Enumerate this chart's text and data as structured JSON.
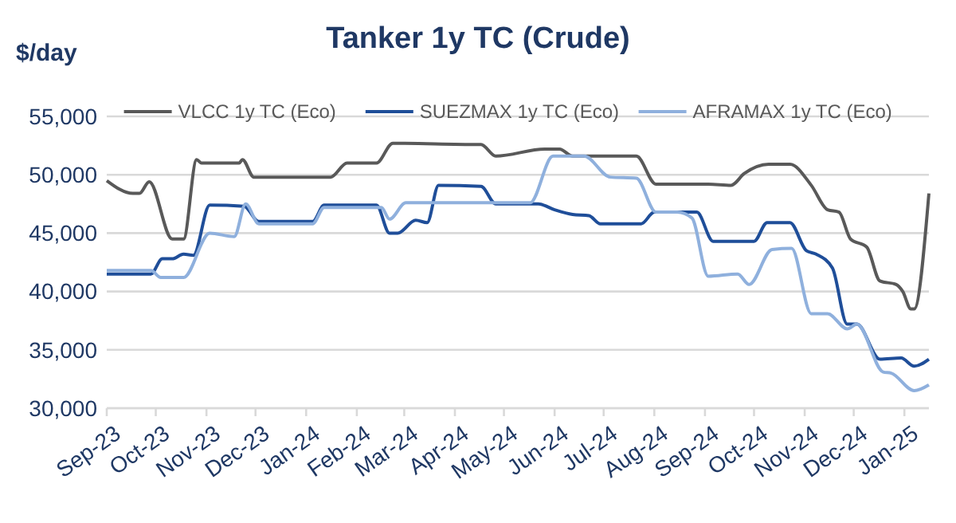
{
  "chart_data": {
    "type": "line",
    "title": "Tanker 1y TC (Crude)",
    "ylabel": "$/day",
    "xlim": [
      "2023-09-01",
      "2025-01-16"
    ],
    "xticks": [
      {
        "value": "2023-09-01",
        "label": "Sep-23"
      },
      {
        "value": "2023-10-01",
        "label": "Oct-23"
      },
      {
        "value": "2023-11-01",
        "label": "Nov-23"
      },
      {
        "value": "2023-12-01",
        "label": "Dec-23"
      },
      {
        "value": "2024-01-01",
        "label": "Jan-24"
      },
      {
        "value": "2024-02-01",
        "label": "Feb-24"
      },
      {
        "value": "2024-03-01",
        "label": "Mar-24"
      },
      {
        "value": "2024-04-01",
        "label": "Apr-24"
      },
      {
        "value": "2024-05-01",
        "label": "May-24"
      },
      {
        "value": "2024-06-01",
        "label": "Jun-24"
      },
      {
        "value": "2024-07-01",
        "label": "Jul-24"
      },
      {
        "value": "2024-08-01",
        "label": "Aug-24"
      },
      {
        "value": "2024-09-01",
        "label": "Sep-24"
      },
      {
        "value": "2024-10-01",
        "label": "Oct-24"
      },
      {
        "value": "2024-11-01",
        "label": "Nov-24"
      },
      {
        "value": "2024-12-01",
        "label": "Dec-24"
      },
      {
        "value": "2025-01-01",
        "label": "Jan-25"
      }
    ],
    "ylim": [
      30000,
      55000
    ],
    "yticks": [
      {
        "value": 30000,
        "label": "30,000"
      },
      {
        "value": 35000,
        "label": "35,000"
      },
      {
        "value": 40000,
        "label": "40,000"
      },
      {
        "value": 45000,
        "label": "45,000"
      },
      {
        "value": 50000,
        "label": "50,000"
      },
      {
        "value": 55000,
        "label": "55,000"
      }
    ],
    "grid": "y",
    "legend": "top",
    "line_style": "solid",
    "series": [
      {
        "name": "VLCC 1y TC (Eco)",
        "color": "#595959",
        "x": [
          "2023-09-01",
          "2023-09-17",
          "2023-09-21",
          "2023-09-27",
          "2023-10-11",
          "2023-10-18",
          "2023-10-26",
          "2023-10-29",
          "2023-11-21",
          "2023-11-23",
          "2023-11-30",
          "2024-01-16",
          "2024-01-26",
          "2024-02-13",
          "2024-02-23",
          "2024-04-15",
          "2024-04-17",
          "2024-04-26",
          "2024-05-26",
          "2024-06-04",
          "2024-06-12",
          "2024-07-21",
          "2024-08-02",
          "2024-09-03",
          "2024-09-17",
          "2024-09-25",
          "2024-10-10",
          "2024-10-23",
          "2024-11-05",
          "2024-11-15",
          "2024-11-22",
          "2024-11-29",
          "2024-12-09",
          "2024-12-17",
          "2024-12-27",
          "2024-12-31",
          "2025-01-05",
          "2025-01-07",
          "2025-01-16"
        ],
        "values": [
          49500,
          48400,
          48400,
          49400,
          44500,
          44500,
          51300,
          51000,
          51000,
          51300,
          49800,
          49800,
          51000,
          51000,
          52700,
          52600,
          52600,
          51600,
          52200,
          52200,
          51600,
          51600,
          49200,
          49200,
          49100,
          50100,
          50900,
          50900,
          49100,
          47000,
          46800,
          44500,
          43800,
          40900,
          40600,
          40000,
          38500,
          38500,
          48400
        ]
      },
      {
        "name": "SUEZMAX 1y TC (Eco)",
        "color": "#1f4e99",
        "x": [
          "2023-09-01",
          "2023-09-28",
          "2023-10-05",
          "2023-10-11",
          "2023-10-18",
          "2023-10-24",
          "2023-11-03",
          "2023-11-24",
          "2023-12-03",
          "2024-01-05",
          "2024-01-12",
          "2024-02-13",
          "2024-02-21",
          "2024-02-26",
          "2024-03-08",
          "2024-03-15",
          "2024-03-22",
          "2024-04-17",
          "2024-04-26",
          "2024-05-22",
          "2024-06-01",
          "2024-06-12",
          "2024-06-22",
          "2024-06-29",
          "2024-07-24",
          "2024-08-01",
          "2024-08-27",
          "2024-09-06",
          "2024-10-01",
          "2024-10-09",
          "2024-10-23",
          "2024-11-02",
          "2024-11-08",
          "2024-11-18",
          "2024-11-27",
          "2024-12-03",
          "2024-12-17",
          "2024-12-30",
          "2025-01-07",
          "2025-01-16"
        ],
        "values": [
          41500,
          41500,
          42800,
          42800,
          43200,
          43100,
          47400,
          47300,
          46000,
          46000,
          47400,
          47400,
          45000,
          45000,
          46100,
          45900,
          49100,
          49000,
          47500,
          47500,
          47000,
          46600,
          46500,
          45800,
          45800,
          46800,
          46800,
          44300,
          44300,
          45900,
          45900,
          43500,
          43200,
          42000,
          37200,
          37200,
          34200,
          34300,
          33600,
          34200
        ]
      },
      {
        "name": "AFRAMAX 1y TC (Eco)",
        "color": "#8fb0dd",
        "x": [
          "2023-09-01",
          "2023-09-28",
          "2023-10-04",
          "2023-10-18",
          "2023-11-03",
          "2023-11-18",
          "2023-11-25",
          "2023-12-03",
          "2024-01-05",
          "2024-01-12",
          "2024-02-16",
          "2024-02-21",
          "2024-03-02",
          "2024-05-17",
          "2024-05-31",
          "2024-06-19",
          "2024-07-05",
          "2024-07-21",
          "2024-08-02",
          "2024-08-15",
          "2024-08-24",
          "2024-09-03",
          "2024-09-21",
          "2024-09-28",
          "2024-10-12",
          "2024-10-24",
          "2024-11-05",
          "2024-11-15",
          "2024-11-27",
          "2024-12-03",
          "2024-12-19",
          "2024-12-24",
          "2025-01-07",
          "2025-01-16"
        ],
        "values": [
          41800,
          41800,
          41200,
          41200,
          45000,
          44700,
          47500,
          45800,
          45800,
          47200,
          47200,
          46200,
          47600,
          47600,
          51600,
          51600,
          49800,
          49700,
          46800,
          46800,
          46300,
          41300,
          41500,
          40600,
          43600,
          43700,
          38100,
          38100,
          36800,
          37200,
          33100,
          33000,
          31500,
          32000
        ]
      }
    ]
  }
}
